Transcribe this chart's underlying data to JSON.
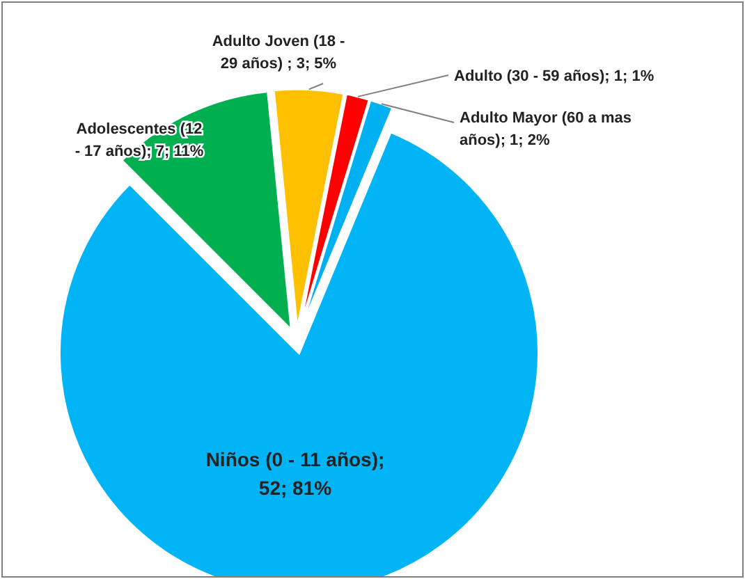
{
  "chart_data": {
    "type": "pie",
    "categories": [
      "Adolescentes  (12 - 17 años)",
      "Adulto Joven (18 - 29 años)",
      "Adulto (30 - 59 años)",
      "Adulto Mayor (60 a mas años)",
      "Niños (0 - 11 años)"
    ],
    "values": [
      7,
      3,
      1,
      1,
      52
    ],
    "colors": [
      "#00b050",
      "#ffc000",
      "#ff0000",
      "#00b0f0",
      "#00b4f5"
    ],
    "value_labels": [
      "; 7; 11%",
      " ; 3; 5%",
      "; 1; 1%",
      "; 1; 2%",
      "; 52; 81%"
    ]
  }
}
